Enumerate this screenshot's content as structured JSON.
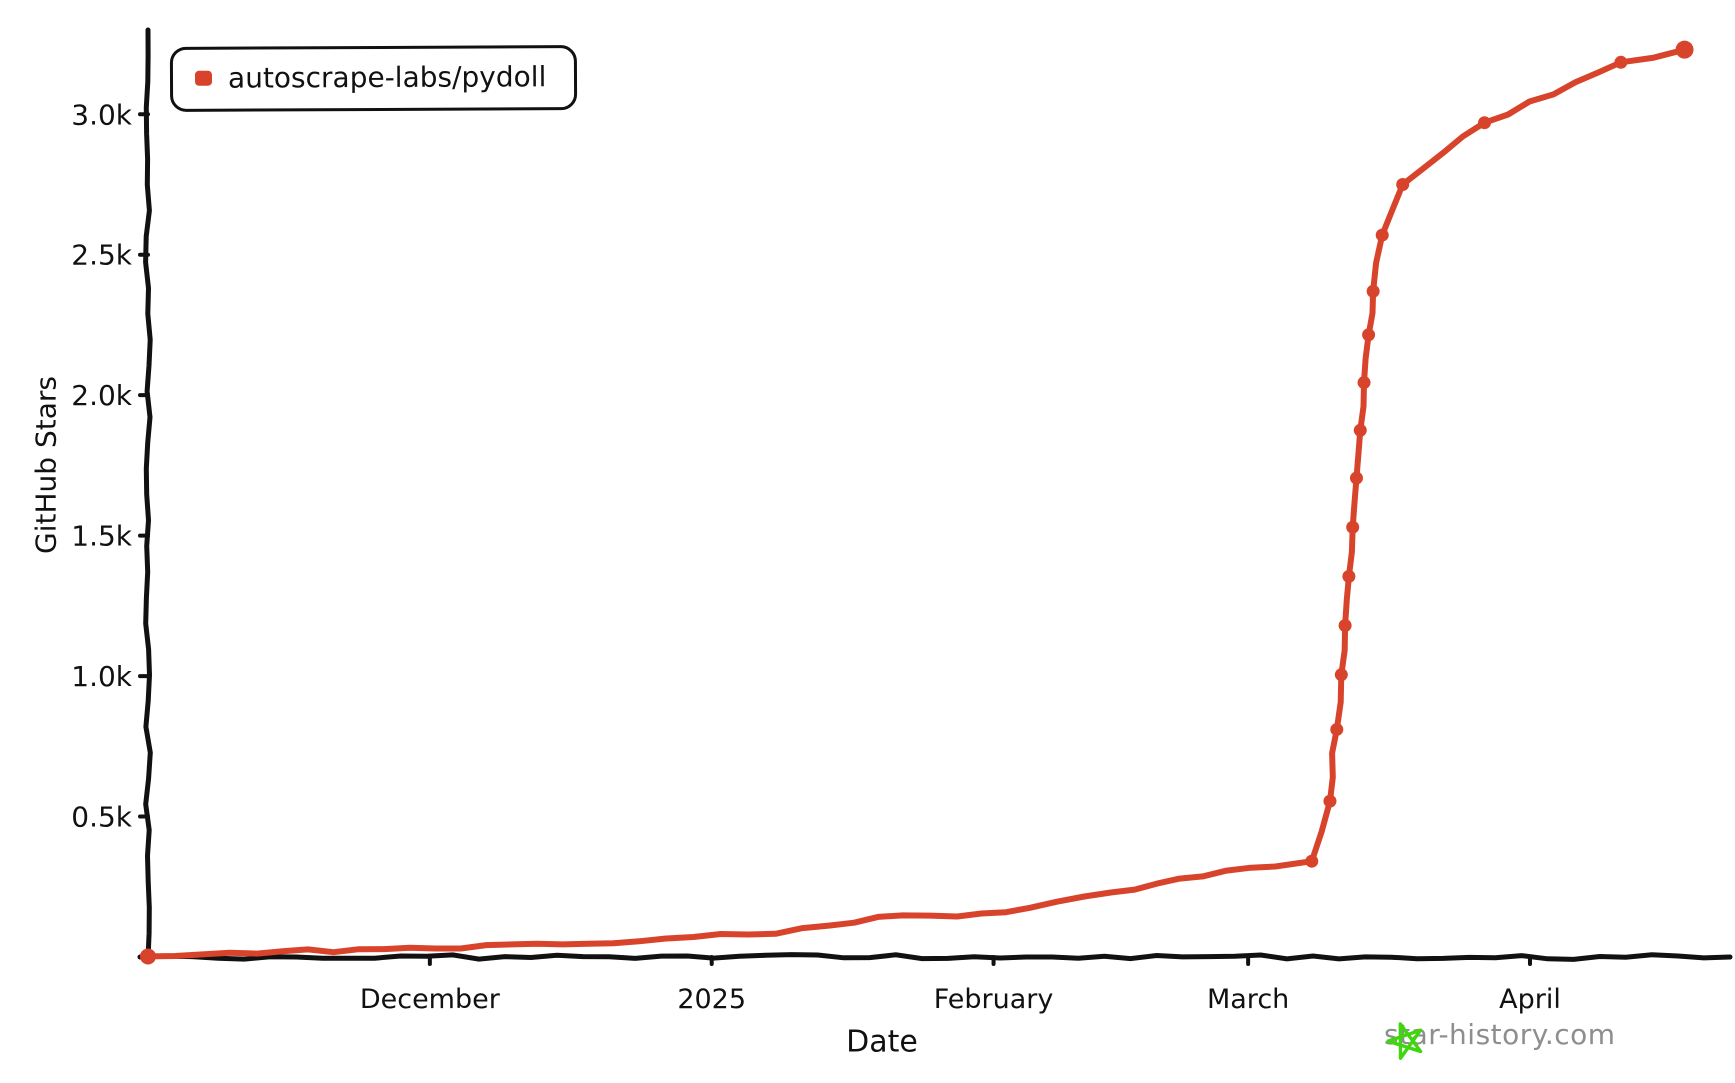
{
  "page": {
    "background": "#ffffff"
  },
  "chart_data": {
    "type": "line",
    "title": "",
    "xlabel": "Date",
    "ylabel": "GitHub Stars",
    "grid": false,
    "legend_position": "top-left",
    "x_domain": [
      "2024-10-31",
      "2025-04-23"
    ],
    "y_domain": [
      0,
      3300
    ],
    "x_ticks": [
      {
        "date": "2024-12-01",
        "label": "December"
      },
      {
        "date": "2025-01-01",
        "label": "2025"
      },
      {
        "date": "2025-02-01",
        "label": "February"
      },
      {
        "date": "2025-03-01",
        "label": "March"
      },
      {
        "date": "2025-04-01",
        "label": "April"
      }
    ],
    "y_ticks": [
      {
        "value": 500,
        "label": "0.5k"
      },
      {
        "value": 1000,
        "label": "1.0k"
      },
      {
        "value": 1500,
        "label": "1.5k"
      },
      {
        "value": 2000,
        "label": "2.0k"
      },
      {
        "value": 2500,
        "label": "2.5k"
      },
      {
        "value": 3000,
        "label": "3.0k"
      }
    ],
    "series": [
      {
        "name": "autoscrape-labs/pydoll",
        "color": "#d8442b",
        "points": [
          {
            "date": "2024-10-31",
            "stars": 2,
            "dot": true
          },
          {
            "date": "2024-11-12",
            "stars": 12,
            "dot": false
          },
          {
            "date": "2024-11-26",
            "stars": 28,
            "dot": false
          },
          {
            "date": "2024-12-10",
            "stars": 45,
            "dot": false
          },
          {
            "date": "2024-12-24",
            "stars": 56,
            "dot": false
          },
          {
            "date": "2025-01-05",
            "stars": 80,
            "dot": false
          },
          {
            "date": "2025-01-14",
            "stars": 112,
            "dot": false
          },
          {
            "date": "2025-01-22",
            "stars": 148,
            "dot": false
          },
          {
            "date": "2025-01-28",
            "stars": 144,
            "dot": false
          },
          {
            "date": "2025-02-05",
            "stars": 175,
            "dot": false
          },
          {
            "date": "2025-02-14",
            "stars": 230,
            "dot": false
          },
          {
            "date": "2025-02-24",
            "stars": 287,
            "dot": false
          },
          {
            "date": "2025-03-04",
            "stars": 322,
            "dot": false
          },
          {
            "date": "2025-03-08",
            "stars": 341,
            "dot": true
          },
          {
            "date": "2025-03-10",
            "stars": 555,
            "dot": true
          },
          {
            "date": "2025-03-10T18:00",
            "stars": 810,
            "dot": true
          },
          {
            "date": "2025-03-11T06:00",
            "stars": 1005,
            "dot": true
          },
          {
            "date": "2025-03-11T16:00",
            "stars": 1180,
            "dot": true
          },
          {
            "date": "2025-03-12T02:00",
            "stars": 1355,
            "dot": true
          },
          {
            "date": "2025-03-12T12:00",
            "stars": 1530,
            "dot": true
          },
          {
            "date": "2025-03-12T22:00",
            "stars": 1705,
            "dot": true
          },
          {
            "date": "2025-03-13T08:00",
            "stars": 1875,
            "dot": true
          },
          {
            "date": "2025-03-13T18:00",
            "stars": 2045,
            "dot": true
          },
          {
            "date": "2025-03-14T06:00",
            "stars": 2215,
            "dot": true
          },
          {
            "date": "2025-03-14T18:00",
            "stars": 2370,
            "dot": true
          },
          {
            "date": "2025-03-15T18:00",
            "stars": 2570,
            "dot": true
          },
          {
            "date": "2025-03-18",
            "stars": 2750,
            "dot": true
          },
          {
            "date": "2025-03-27",
            "stars": 2970,
            "dot": true
          },
          {
            "date": "2025-04-11",
            "stars": 3185,
            "dot": true
          },
          {
            "date": "2025-04-18",
            "stars": 3230,
            "dot": true
          }
        ]
      }
    ]
  },
  "legend": {
    "series_label": "autoscrape-labs/pydoll",
    "swatch_color": "#d8442b"
  },
  "axes": {
    "color": "#111111"
  },
  "watermark": {
    "text": "star-history.com",
    "icon": "star-doodle-icon",
    "text_color": "#8e8e8e",
    "star_color": "#3fd60f"
  }
}
